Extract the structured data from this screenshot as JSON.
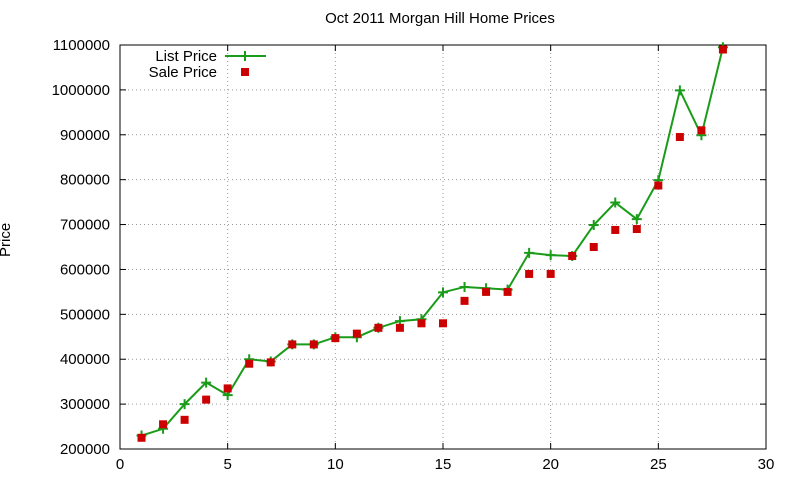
{
  "chart_data": {
    "type": "line",
    "title": "Oct 2011 Morgan Hill Home Prices",
    "xlabel": "",
    "ylabel": "Price",
    "xlim": [
      0,
      30
    ],
    "ylim": [
      200000,
      1100000
    ],
    "xticks": [
      0,
      5,
      10,
      15,
      20,
      25,
      30
    ],
    "yticks": [
      200000,
      300000,
      400000,
      500000,
      600000,
      700000,
      800000,
      900000,
      1000000,
      1100000
    ],
    "grid": true,
    "legend_position": "top-left",
    "series": [
      {
        "name": "List Price",
        "style": "line-points",
        "color": "#1a9c1a",
        "x": [
          1,
          2,
          3,
          4,
          5,
          6,
          7,
          8,
          9,
          10,
          11,
          12,
          13,
          14,
          15,
          16,
          17,
          18,
          19,
          20,
          21,
          22,
          23,
          24,
          25,
          26,
          27,
          28
        ],
        "y": [
          230000,
          245000,
          300000,
          348000,
          320000,
          400000,
          395000,
          433000,
          433000,
          449000,
          449000,
          470000,
          485000,
          489000,
          549000,
          561000,
          558000,
          555000,
          637000,
          632000,
          630000,
          699000,
          749000,
          712000,
          799000,
          999000,
          899000,
          1095000
        ]
      },
      {
        "name": "Sale Price",
        "style": "points",
        "color": "#cc0000",
        "x": [
          1,
          2,
          3,
          4,
          5,
          6,
          7,
          8,
          9,
          10,
          11,
          12,
          13,
          14,
          15,
          16,
          17,
          18,
          19,
          20,
          21,
          22,
          23,
          24,
          25,
          26,
          27,
          28
        ],
        "y": [
          225000,
          255000,
          265000,
          310000,
          335000,
          390000,
          393000,
          433000,
          433000,
          447000,
          457000,
          470000,
          470000,
          480000,
          480000,
          530000,
          550000,
          550000,
          590000,
          590000,
          630000,
          650000,
          688000,
          690000,
          787000,
          895000,
          910000,
          1090000
        ]
      }
    ]
  }
}
